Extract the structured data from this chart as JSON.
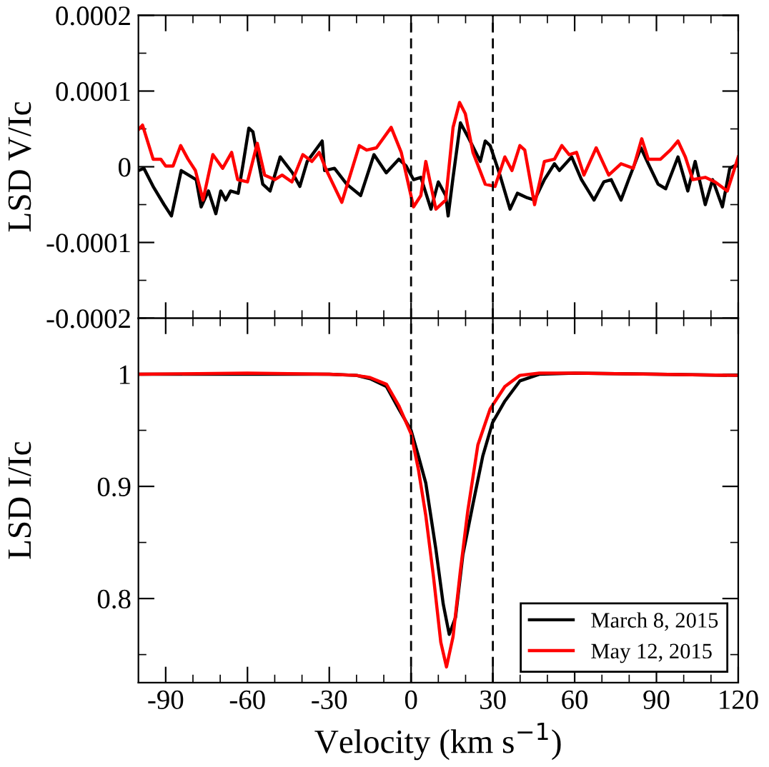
{
  "chart_data": [
    {
      "type": "line",
      "ylabel": "LSD V/Ic",
      "xlim": [
        -100,
        120
      ],
      "xticks": [
        -90,
        {
          "value": -80,
          "label": null
        },
        {
          "value": -70,
          "label": null
        },
        -60,
        {
          "value": -50,
          "label": null
        },
        {
          "value": -40,
          "label": null
        },
        -30,
        {
          "value": -20,
          "label": null
        },
        {
          "value": -10,
          "label": null
        },
        0,
        {
          "value": 10,
          "label": null
        },
        {
          "value": 20,
          "label": null
        },
        30,
        {
          "value": 40,
          "label": null
        },
        {
          "value": 50,
          "label": null
        },
        60,
        {
          "value": 70,
          "label": null
        },
        {
          "value": 80,
          "label": null
        },
        90,
        {
          "value": 100,
          "label": null
        },
        {
          "value": 110,
          "label": null
        },
        120
      ],
      "ylim": [
        -0.0002,
        0.0002
      ],
      "yticks": [
        -0.0002,
        {
          "value": -0.00015,
          "label": null
        },
        -0.0001,
        {
          "value": -5e-05,
          "label": null
        },
        0,
        {
          "value": 5e-05,
          "label": null
        },
        0.0001,
        {
          "value": 0.00015,
          "label": null
        },
        0.0002
      ],
      "tick_labels": "y",
      "grid": false,
      "legend": false,
      "ref_lines": [
        {
          "axis": "x",
          "value": 0,
          "color": "#000000",
          "line_style": "dashed"
        },
        {
          "axis": "x",
          "value": 30,
          "color": "#000000",
          "line_style": "dashed"
        }
      ],
      "series": [
        {
          "color": "#000000",
          "x": [
            -100,
            -98,
            -94.6,
            -90.6,
            -87.9,
            -84.3,
            -78.8,
            -77,
            -74.3,
            -71.6,
            -69.8,
            -68,
            -66.2,
            -63.4,
            -61.6,
            -59.5,
            -58,
            -54.4,
            -51.7,
            -48,
            -43.5,
            -40.8,
            -38.1,
            -32.6,
            -31.7,
            -28.1,
            -23.6,
            -18.5,
            -13.6,
            -9.1,
            -4.5,
            -1.8,
            0.9,
            3.6,
            7.3,
            10,
            12.7,
            13.6,
            15.4,
            18.1,
            20.8,
            25.4,
            27.2,
            29,
            32.6,
            36.3,
            39,
            42.6,
            45.3,
            48.9,
            52.6,
            54.4,
            58.9,
            62.5,
            67.1,
            70.7,
            73.4,
            77,
            79.8,
            84.3,
            87,
            90.6,
            93.4,
            97.9,
            101.5,
            104.2,
            107.9,
            110.6,
            114.2,
            116.9,
            120
          ],
          "values": [
            -5e-06,
            -2e-06,
            -2.6e-05,
            -5e-05,
            -6.5e-05,
            -5e-06,
            -1.7e-05,
            -5.3e-05,
            -3.2e-05,
            -6.2e-05,
            -3.2e-05,
            -4.4e-05,
            -3.2e-05,
            -3.5e-05,
            4e-06,
            5.1e-05,
            4.6e-05,
            -2.3e-05,
            -3.2e-05,
            1.3e-05,
            -8e-06,
            -2.6e-05,
            7e-06,
            3.4e-05,
            -5e-06,
            -2e-06,
            -2.3e-05,
            -3.8e-05,
            1.6e-05,
            -8e-06,
            1e-05,
            1e-06,
            -1.7e-05,
            -1.4e-05,
            -5.6e-05,
            -2e-05,
            -3.8e-05,
            -6.5e-05,
            -1.4e-05,
            5.8e-05,
            4e-05,
            7e-06,
            3.4e-05,
            2.8e-05,
            -1.1e-05,
            -5.6e-05,
            -3.5e-05,
            -4.1e-05,
            -4.4e-05,
            -1.7e-05,
            4e-06,
            -5e-06,
            1.3e-05,
            -1.7e-05,
            -4.4e-05,
            -2e-05,
            -1.7e-05,
            -4.4e-05,
            -1.7e-05,
            2.5e-05,
            4e-06,
            -2.3e-05,
            -2.9e-05,
            1.3e-05,
            -3.2e-05,
            7e-06,
            -5e-05,
            -1.7e-05,
            -5.3e-05,
            -2e-06,
            4e-06
          ]
        },
        {
          "color": "#ff0000",
          "x": [
            -100,
            -98.5,
            -94.6,
            -91.8,
            -90,
            -87.3,
            -84.5,
            -81.8,
            -79.1,
            -76.3,
            -72.7,
            -69.1,
            -65.8,
            -63.6,
            -60,
            -56.4,
            -53.7,
            -50,
            -47.3,
            -43.7,
            -39.7,
            -36.4,
            -33.7,
            -31,
            -25.4,
            -19,
            -16.3,
            -12.7,
            -7.3,
            -3.6,
            0.9,
            3.6,
            5.4,
            9.1,
            12.7,
            15.4,
            17.8,
            19.9,
            22.7,
            27.2,
            30.8,
            34.4,
            37,
            39.9,
            41.7,
            45.3,
            48.9,
            52.6,
            55.3,
            58,
            60.7,
            63.4,
            67.9,
            72.5,
            77,
            81.5,
            84.6,
            87,
            91.5,
            95.1,
            97.9,
            100.6,
            103.3,
            107.9,
            111.5,
            116,
            120
          ],
          "values": [
            4.9e-05,
            5.5e-05,
            1e-05,
            1e-05,
            1e-06,
            1e-06,
            2.8e-05,
            1e-05,
            -5e-06,
            -4.4e-05,
            1.6e-05,
            -2e-06,
            1.9e-05,
            -1.7e-05,
            -2e-05,
            3.1e-05,
            -1.1e-05,
            -1.7e-05,
            -1.1e-05,
            -2e-05,
            1.6e-05,
            7e-06,
            1.9e-05,
            -5e-06,
            -4.7e-05,
            2.8e-05,
            2.2e-05,
            2.5e-05,
            5.2e-05,
            1.9e-05,
            -5.3e-05,
            -3.8e-05,
            7e-06,
            -5.6e-05,
            -4.4e-05,
            5.2e-05,
            8.5e-05,
            7e-05,
            1.9e-05,
            -2.3e-05,
            -2.6e-05,
            1.3e-05,
            -5e-06,
            2.8e-05,
            2.2e-05,
            -5e-05,
            7e-06,
            1e-05,
            2.8e-05,
            1.6e-05,
            1.9e-05,
            -1.1e-05,
            2.5e-05,
            -1.1e-05,
            4e-06,
            -2e-06,
            3.7e-05,
            1e-05,
            1e-05,
            2.2e-05,
            3.4e-05,
            1.3e-05,
            -1.7e-05,
            -1.4e-05,
            -2e-05,
            -3.2e-05,
            1.3e-05
          ]
        }
      ]
    },
    {
      "type": "line",
      "xlabel": "Velocity (km s$^{−1}$)",
      "ylabel": "LSD I/Ic",
      "xlim": [
        -100,
        120
      ],
      "xticks": [
        -90,
        {
          "value": -80,
          "label": null
        },
        {
          "value": -70,
          "label": null
        },
        -60,
        {
          "value": -50,
          "label": null
        },
        {
          "value": -40,
          "label": null
        },
        -30,
        {
          "value": -20,
          "label": null
        },
        {
          "value": -10,
          "label": null
        },
        0,
        {
          "value": 10,
          "label": null
        },
        {
          "value": 20,
          "label": null
        },
        30,
        {
          "value": 40,
          "label": null
        },
        {
          "value": 50,
          "label": null
        },
        60,
        {
          "value": 70,
          "label": null
        },
        {
          "value": 80,
          "label": null
        },
        90,
        {
          "value": 100,
          "label": null
        },
        {
          "value": 110,
          "label": null
        },
        120
      ],
      "ylim": [
        0.725,
        1.05
      ],
      "yticks": [
        {
          "value": 0.75,
          "label": null
        },
        0.8,
        {
          "value": 0.85,
          "label": null
        },
        0.9,
        {
          "value": 0.95,
          "label": null
        },
        1,
        {
          "value": 1.05,
          "label": null
        }
      ],
      "grid": false,
      "legend": "bottom right",
      "ref_lines": [
        {
          "axis": "x",
          "value": 0,
          "color": "#000000",
          "line_style": "dashed"
        },
        {
          "axis": "x",
          "value": 30,
          "color": "#000000",
          "line_style": "dashed"
        }
      ],
      "series": [
        {
          "name": "March 8, 2015",
          "color": "#000000",
          "x": [
            -100,
            -60,
            -30,
            -20,
            -15,
            -9,
            -4.5,
            0,
            2.7,
            5.4,
            9.1,
            11.8,
            14,
            16.3,
            19,
            22.6,
            26.3,
            29.9,
            34.4,
            39.9,
            47,
            60,
            90,
            120
          ],
          "values": [
            1,
            1,
            1,
            0.999,
            0.996,
            0.989,
            0.969,
            0.95,
            0.927,
            0.903,
            0.844,
            0.795,
            0.768,
            0.783,
            0.839,
            0.883,
            0.927,
            0.957,
            0.976,
            0.994,
            1,
            1.001,
            1,
            0.999
          ]
        },
        {
          "name": "May 12, 2015",
          "color": "#ff0000",
          "x": [
            -100,
            -60,
            -30,
            -20,
            -15,
            -9,
            -4.5,
            0,
            2.7,
            5.4,
            8.2,
            10.9,
            13,
            15.4,
            18.1,
            20.8,
            24.5,
            29,
            34.4,
            39.9,
            47,
            60,
            90,
            120
          ],
          "values": [
            1,
            1.001,
            1,
            0.999,
            0.997,
            0.991,
            0.972,
            0.947,
            0.915,
            0.874,
            0.82,
            0.761,
            0.739,
            0.766,
            0.825,
            0.878,
            0.937,
            0.969,
            0.989,
            0.999,
            1.001,
            1.001,
            1,
            0.999
          ]
        }
      ]
    }
  ]
}
